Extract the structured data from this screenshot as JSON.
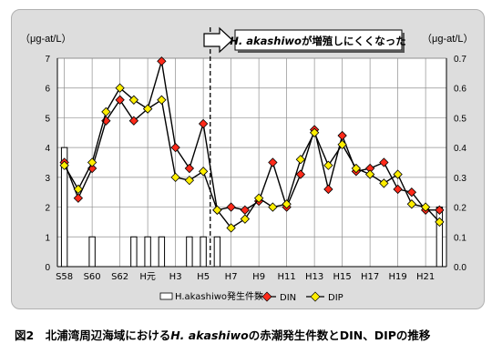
{
  "chart_data": {
    "type": "bar+line",
    "categories": [
      "S58",
      "S59",
      "S60",
      "S61",
      "S62",
      "S63",
      "H元",
      "H2",
      "H3",
      "H4",
      "H5",
      "H6",
      "H7",
      "H8",
      "H9",
      "H10",
      "H11",
      "H12",
      "H13",
      "H14",
      "H15",
      "H16",
      "H17",
      "H18",
      "H19",
      "H20",
      "H21",
      "H22"
    ],
    "x_tick_labels": [
      "S58",
      "S60",
      "S62",
      "H元",
      "H3",
      "H5",
      "H7",
      "H9",
      "H11",
      "H13",
      "H15",
      "H17",
      "H19",
      "H21"
    ],
    "left_axis": {
      "label": "（μg-at/L）",
      "min": 0,
      "max": 7,
      "ticks": [
        "0",
        "1",
        "2",
        "3",
        "4",
        "5",
        "6",
        "7"
      ]
    },
    "right_axis": {
      "label": "（μg-at/L）",
      "min": 0,
      "max": 0.7,
      "ticks": [
        "0.0",
        "0.1",
        "0.2",
        "0.3",
        "0.4",
        "0.5",
        "0.6",
        "0.7"
      ]
    },
    "series": [
      {
        "name": "H.akashiwo発生件数",
        "kind": "bar",
        "axis": "left",
        "color": "#ffffff",
        "values": [
          4,
          0,
          1,
          0,
          0,
          1,
          1,
          1,
          0,
          1,
          1,
          1,
          0,
          0,
          0,
          0,
          0,
          0,
          0,
          0,
          0,
          0,
          0,
          0,
          0,
          0,
          0,
          2
        ]
      },
      {
        "name": "DIN",
        "kind": "line",
        "axis": "left",
        "color": "#ff2a1a",
        "values": [
          3.5,
          2.3,
          3.3,
          4.9,
          5.6,
          4.9,
          5.3,
          6.9,
          4.0,
          3.3,
          4.8,
          1.9,
          2.0,
          1.9,
          2.2,
          3.5,
          2.0,
          3.1,
          4.6,
          2.6,
          4.4,
          3.2,
          3.3,
          3.5,
          2.6,
          2.5,
          1.9,
          1.9
        ]
      },
      {
        "name": "DIP",
        "kind": "line",
        "axis": "right",
        "color": "#ffee00",
        "values": [
          0.34,
          0.26,
          0.35,
          0.52,
          0.6,
          0.56,
          0.53,
          0.56,
          0.3,
          0.29,
          0.32,
          0.19,
          0.13,
          0.16,
          0.23,
          0.2,
          0.21,
          0.36,
          0.45,
          0.34,
          0.41,
          0.33,
          0.31,
          0.28,
          0.31,
          0.21,
          0.2,
          0.15
        ]
      }
    ],
    "divider_after": "H5",
    "grid": true,
    "legend_position": "bottom"
  },
  "annotation": {
    "prefix": "",
    "italic": "H. akashiwo",
    "suffix": "が増殖しにくくなった"
  },
  "legend": {
    "bar_label": "H.akashiwo発生件数",
    "din_label": "DIN",
    "dip_label": "DIP"
  },
  "caption": {
    "prefix": "図2　北浦湾周辺海域における",
    "italic": "H. akashiwo",
    "suffix": "の赤潮発生件数とDIN、DIPの推移"
  },
  "colors": {
    "din": "#ff2a1a",
    "dip": "#ffee00",
    "bar": "#ffffff",
    "arrow": "#ffffff",
    "frame": "#dddddd"
  }
}
